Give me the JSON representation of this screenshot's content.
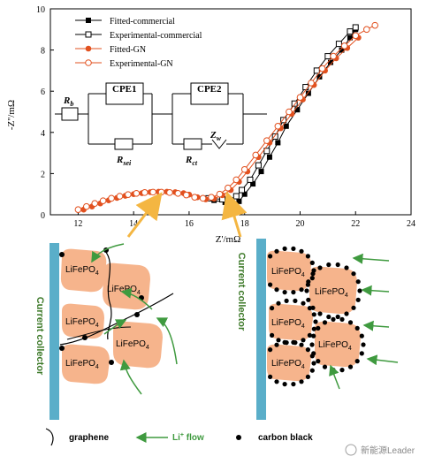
{
  "chart_data": {
    "type": "scatter",
    "xlabel": "Z'/mΩ",
    "ylabel": "-Z''/mΩ",
    "xlim": [
      11,
      24
    ],
    "ylim": [
      0,
      10
    ],
    "x_ticks": [
      "12",
      "14",
      "16",
      "18",
      "20",
      "22",
      "24"
    ],
    "y_ticks": [
      "0",
      "2",
      "4",
      "6",
      "8",
      "10"
    ],
    "grid": false,
    "legend_position": "top-left",
    "series": [
      {
        "name": "Fitted-commercial",
        "color": "#000000",
        "marker": "filled-square",
        "points": [
          [
            16.9,
            0.7
          ],
          [
            17.3,
            0.6
          ],
          [
            17.6,
            0.5
          ],
          [
            17.8,
            0.65
          ],
          [
            18.0,
            1.0
          ],
          [
            18.3,
            1.5
          ],
          [
            18.6,
            2.1
          ],
          [
            18.9,
            2.8
          ],
          [
            19.2,
            3.5
          ],
          [
            19.5,
            4.3
          ],
          [
            19.9,
            5.1
          ],
          [
            20.3,
            5.9
          ],
          [
            20.7,
            6.7
          ],
          [
            21.1,
            7.4
          ],
          [
            21.5,
            8.0
          ],
          [
            21.8,
            8.6
          ],
          [
            22.0,
            9.0
          ]
        ]
      },
      {
        "name": "Experimental-commercial",
        "color": "#000000",
        "marker": "open-square",
        "points": [
          [
            16.7,
            0.8
          ],
          [
            17.2,
            0.75
          ],
          [
            17.5,
            0.7
          ],
          [
            17.7,
            0.9
          ],
          [
            17.9,
            1.2
          ],
          [
            18.2,
            1.7
          ],
          [
            18.5,
            2.4
          ],
          [
            18.8,
            3.1
          ],
          [
            19.1,
            3.8
          ],
          [
            19.4,
            4.6
          ],
          [
            19.8,
            5.4
          ],
          [
            20.2,
            6.2
          ],
          [
            20.6,
            7.0
          ],
          [
            21.0,
            7.7
          ],
          [
            21.4,
            8.3
          ],
          [
            21.8,
            8.9
          ],
          [
            22.0,
            9.1
          ]
        ]
      },
      {
        "name": "Fitted-GN",
        "color": "#e2511f",
        "marker": "filled-circle",
        "points": [
          [
            12.2,
            0.25
          ],
          [
            12.5,
            0.4
          ],
          [
            12.8,
            0.55
          ],
          [
            13.1,
            0.7
          ],
          [
            13.4,
            0.82
          ],
          [
            13.7,
            0.92
          ],
          [
            14.0,
            1.0
          ],
          [
            14.3,
            1.05
          ],
          [
            14.6,
            1.1
          ],
          [
            14.9,
            1.12
          ],
          [
            15.2,
            1.12
          ],
          [
            15.5,
            1.1
          ],
          [
            15.8,
            1.05
          ],
          [
            16.0,
            0.98
          ],
          [
            16.3,
            0.85
          ],
          [
            16.6,
            0.75
          ],
          [
            16.9,
            0.78
          ],
          [
            17.2,
            0.95
          ],
          [
            17.5,
            1.2
          ],
          [
            17.8,
            1.6
          ],
          [
            18.1,
            2.1
          ],
          [
            18.5,
            2.8
          ],
          [
            18.9,
            3.5
          ],
          [
            19.3,
            4.2
          ],
          [
            19.7,
            4.9
          ],
          [
            20.1,
            5.6
          ],
          [
            20.5,
            6.3
          ],
          [
            20.9,
            7.0
          ],
          [
            21.3,
            7.6
          ],
          [
            21.7,
            8.1
          ],
          [
            22.1,
            8.6
          ]
        ]
      },
      {
        "name": "Experimental-GN",
        "color": "#e2511f",
        "marker": "open-circle",
        "points": [
          [
            12.0,
            0.25
          ],
          [
            12.3,
            0.4
          ],
          [
            12.6,
            0.55
          ],
          [
            12.9,
            0.68
          ],
          [
            13.2,
            0.8
          ],
          [
            13.5,
            0.9
          ],
          [
            13.8,
            0.98
          ],
          [
            14.1,
            1.04
          ],
          [
            14.4,
            1.08
          ],
          [
            14.7,
            1.1
          ],
          [
            15.0,
            1.1
          ],
          [
            15.3,
            1.08
          ],
          [
            15.6,
            1.04
          ],
          [
            15.9,
            0.96
          ],
          [
            16.2,
            0.85
          ],
          [
            16.5,
            0.8
          ],
          [
            16.8,
            0.85
          ],
          [
            17.1,
            1.0
          ],
          [
            17.4,
            1.3
          ],
          [
            17.7,
            1.7
          ],
          [
            18.0,
            2.2
          ],
          [
            18.4,
            2.9
          ],
          [
            18.8,
            3.6
          ],
          [
            19.2,
            4.3
          ],
          [
            19.6,
            5.0
          ],
          [
            20.0,
            5.7
          ],
          [
            20.4,
            6.4
          ],
          [
            20.8,
            7.1
          ],
          [
            21.2,
            7.7
          ],
          [
            21.6,
            8.2
          ],
          [
            22.0,
            8.7
          ],
          [
            22.4,
            9.0
          ],
          [
            22.7,
            9.2
          ]
        ]
      }
    ]
  },
  "circuit": {
    "rb": "R",
    "rb_sub": "b",
    "cpe1": "CPE1",
    "cpe2": "CPE2",
    "rsei": "R",
    "rsei_sub": "sei",
    "rct": "R",
    "rct_sub": "ct",
    "zw": "Z",
    "zw_sub": "w"
  },
  "left_diagram": {
    "collector_label": "Current collector",
    "particles": [
      {
        "label": "LiFePO",
        "sub": "4"
      },
      {
        "label": "LiFePO",
        "sub": "4"
      },
      {
        "label": "LiFePO",
        "sub": "4"
      },
      {
        "label": "LiFePO",
        "sub": "4"
      },
      {
        "label": "LiFePO",
        "sub": "4"
      }
    ]
  },
  "right_diagram": {
    "collector_label": "Current collector",
    "particles": [
      {
        "label": "LiFePO",
        "sub": "4"
      },
      {
        "label": "LiFePO",
        "sub": "4"
      },
      {
        "label": "LiFePO",
        "sub": "4"
      },
      {
        "label": "LiFePO",
        "sub": "4"
      },
      {
        "label": "LiFePO",
        "sub": "4"
      }
    ]
  },
  "legend_bottom": {
    "graphene": "graphene",
    "li_flow_prefix": "Li",
    "li_flow_sup": "+",
    "li_flow_suffix": " flow",
    "carbon_black": "carbon black"
  },
  "watermark": "新能源Leader",
  "colors": {
    "particle": "#f6b48c",
    "collector": "#5aaec9",
    "flow_arrow": "#3f9a3f",
    "pointer_arrow": "#f4b642",
    "gn": "#e2511f",
    "collector_text": "#3e7a2a"
  }
}
